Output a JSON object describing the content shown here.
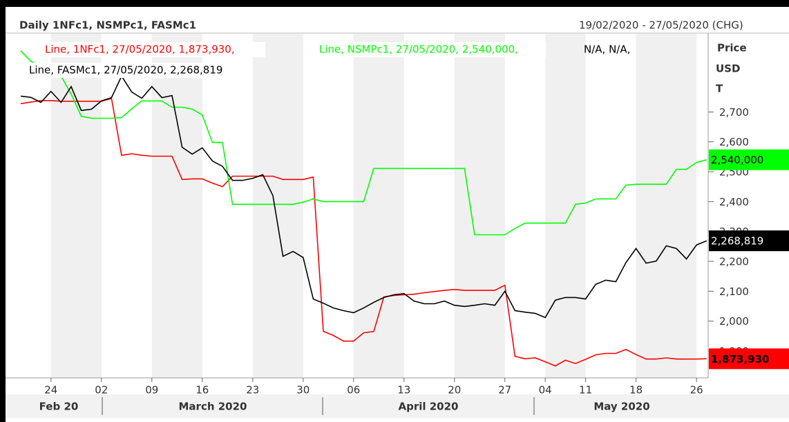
{
  "chart_data": {
    "type": "line",
    "title": "Daily 1NFc1, NSMPc1, FASMc1",
    "subtitle": "19/02/2020 - 27/05/2020 (CHG)",
    "axis_labels": [
      "Price",
      "USD",
      "T"
    ],
    "na_label": "N/A, N/A,",
    "categories": [
      null,
      null,
      null,
      "24",
      null,
      null,
      null,
      null,
      "02",
      null,
      null,
      null,
      null,
      "09",
      null,
      null,
      null,
      null,
      "16",
      null,
      null,
      null,
      null,
      "23",
      null,
      null,
      null,
      null,
      "30",
      null,
      null,
      null,
      null,
      "06",
      null,
      null,
      null,
      null,
      "13",
      null,
      null,
      null,
      null,
      "20",
      null,
      null,
      null,
      null,
      "27",
      null,
      null,
      null,
      "04",
      null,
      null,
      null,
      "11",
      null,
      null,
      null,
      null,
      "18",
      null,
      null,
      null,
      null,
      null,
      "26",
      null
    ],
    "month_labels": [
      "Feb 20",
      "March 2020",
      "April 2020",
      "May 2020"
    ],
    "ylim": [
      1810,
      2964
    ],
    "yticks": [
      {
        "value": 1900,
        "label": "1,900"
      },
      {
        "value": 2000,
        "label": "2,000"
      },
      {
        "value": 2100,
        "label": "2,100"
      },
      {
        "value": 2200,
        "label": "2,200"
      },
      {
        "value": 2300,
        "label": "2,300"
      },
      {
        "value": 2400,
        "label": "2,400"
      },
      {
        "value": 2500,
        "label": "2,500"
      },
      {
        "value": 2600,
        "label": "2,600"
      },
      {
        "value": 2700,
        "label": "2,700"
      }
    ],
    "series": [
      {
        "name": "Line, 1NFc1, 27/05/2020, 1,873,930,",
        "color": "#ff0000",
        "end_label": "1,873,930",
        "values": [
          2728,
          2733,
          2738,
          2738,
          2736,
          2736,
          2736,
          2736,
          2736,
          2745,
          2555,
          2560,
          2555,
          2552,
          2552,
          2552,
          2474,
          2476,
          2476,
          2462,
          2450,
          2485,
          2485,
          2485,
          2485,
          2485,
          2474,
          2474,
          2474,
          2482,
          1966,
          1952,
          1933,
          1933,
          1961,
          1965,
          2081,
          2086,
          2088,
          2090,
          2095,
          2099,
          2103,
          2106,
          2103,
          2103,
          2103,
          2103,
          2120,
          1882,
          1874,
          1877,
          1864,
          1850,
          1869,
          1858,
          1872,
          1887,
          1892,
          1892,
          1905,
          1888,
          1873,
          1873,
          1877,
          1873,
          1873,
          1873,
          1873.93
        ]
      },
      {
        "name": "Line, NSMPc1, 27/05/2020, 2,540,000,",
        "color": "#00ff00",
        "end_label": "2,540,000",
        "values": [
          2905,
          2870,
          2850,
          2835,
          2820,
          2760,
          2686,
          2679,
          2679,
          2679,
          2681,
          2710,
          2737,
          2737,
          2737,
          2716,
          2716,
          2710,
          2690,
          2598,
          2598,
          2391,
          2391,
          2391,
          2391,
          2391,
          2391,
          2391,
          2398,
          2409,
          2400,
          2400,
          2400,
          2400,
          2400,
          2511,
          2511,
          2511,
          2511,
          2511,
          2511,
          2511,
          2511,
          2511,
          2511,
          2289,
          2289,
          2289,
          2289,
          2310,
          2328,
          2328,
          2328,
          2328,
          2328,
          2391,
          2395,
          2409,
          2409,
          2409,
          2455,
          2458,
          2458,
          2458,
          2458,
          2508,
          2508,
          2531,
          2540
        ]
      },
      {
        "name": "Line, FASMc1, 27/05/2020, 2,268,819",
        "color": "#000000",
        "end_label": "2,268,819",
        "values": [
          2753,
          2749,
          2732,
          2769,
          2732,
          2785,
          2705,
          2709,
          2737,
          2748,
          2820,
          2767,
          2746,
          2785,
          2748,
          2755,
          2582,
          2559,
          2580,
          2536,
          2518,
          2471,
          2471,
          2478,
          2490,
          2420,
          2217,
          2233,
          2213,
          2074,
          2060,
          2044,
          2035,
          2028,
          2044,
          2063,
          2079,
          2088,
          2092,
          2067,
          2058,
          2058,
          2067,
          2053,
          2049,
          2053,
          2058,
          2053,
          2100,
          2035,
          2030,
          2026,
          2012,
          2070,
          2079,
          2079,
          2074,
          2123,
          2137,
          2132,
          2196,
          2243,
          2194,
          2201,
          2252,
          2243,
          2208,
          2255,
          2268.819
        ]
      }
    ]
  }
}
